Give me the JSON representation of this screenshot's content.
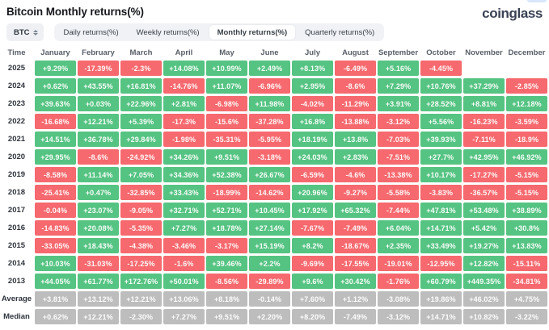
{
  "page": {
    "title": "Bitcoin Monthly returns(%)",
    "brand": "coinglass"
  },
  "controls": {
    "symbol_select": {
      "value": "BTC"
    },
    "tabs": [
      {
        "label": "Daily returns(%)",
        "active": false
      },
      {
        "label": "Weekly returns(%)",
        "active": false
      },
      {
        "label": "Monthly returns(%)",
        "active": true
      },
      {
        "label": "Quarterly returns(%)",
        "active": false
      }
    ]
  },
  "colors": {
    "positive": "#55C382",
    "negative": "#F6696E",
    "neutral": "#BDBDBD"
  },
  "table": {
    "time_header": "Time",
    "months": [
      "January",
      "February",
      "March",
      "April",
      "May",
      "June",
      "July",
      "August",
      "September",
      "October",
      "November",
      "December"
    ],
    "rows": [
      {
        "label": "2025",
        "type": "year",
        "values": [
          "+9.29%",
          "-17.39%",
          "-2.3%",
          "+14.08%",
          "+10.99%",
          "+2.49%",
          "+8.13%",
          "-6.49%",
          "+5.16%",
          "-4.45%",
          "",
          ""
        ]
      },
      {
        "label": "2024",
        "type": "year",
        "values": [
          "+0.62%",
          "+43.55%",
          "+16.81%",
          "-14.76%",
          "+11.07%",
          "-6.96%",
          "+2.95%",
          "-8.6%",
          "+7.29%",
          "+10.76%",
          "+37.29%",
          "-2.85%"
        ]
      },
      {
        "label": "2023",
        "type": "year",
        "values": [
          "+39.63%",
          "+0.03%",
          "+22.96%",
          "+2.81%",
          "-6.98%",
          "+11.98%",
          "-4.02%",
          "-11.29%",
          "+3.91%",
          "+28.52%",
          "+8.81%",
          "+12.18%"
        ]
      },
      {
        "label": "2022",
        "type": "year",
        "values": [
          "-16.68%",
          "+12.21%",
          "+5.39%",
          "-17.3%",
          "-15.6%",
          "-37.28%",
          "+16.8%",
          "-13.88%",
          "-3.12%",
          "+5.56%",
          "-16.23%",
          "-3.59%"
        ]
      },
      {
        "label": "2021",
        "type": "year",
        "values": [
          "+14.51%",
          "+36.78%",
          "+29.84%",
          "-1.98%",
          "-35.31%",
          "-5.95%",
          "+18.19%",
          "+13.8%",
          "-7.03%",
          "+39.93%",
          "-7.11%",
          "-18.9%"
        ]
      },
      {
        "label": "2020",
        "type": "year",
        "values": [
          "+29.95%",
          "-8.6%",
          "-24.92%",
          "+34.26%",
          "+9.51%",
          "-3.18%",
          "+24.03%",
          "+2.83%",
          "-7.51%",
          "+27.7%",
          "+42.95%",
          "+46.92%"
        ]
      },
      {
        "label": "2019",
        "type": "year",
        "values": [
          "-8.58%",
          "+11.14%",
          "+7.05%",
          "+34.36%",
          "+52.38%",
          "+26.67%",
          "-6.59%",
          "-4.6%",
          "-13.38%",
          "+10.17%",
          "-17.27%",
          "-5.15%"
        ]
      },
      {
        "label": "2018",
        "type": "year",
        "values": [
          "-25.41%",
          "+0.47%",
          "-32.85%",
          "+33.43%",
          "-18.99%",
          "-14.62%",
          "+20.96%",
          "-9.27%",
          "-5.58%",
          "-3.83%",
          "-36.57%",
          "-5.15%"
        ]
      },
      {
        "label": "2017",
        "type": "year",
        "values": [
          "-0.04%",
          "+23.07%",
          "-9.05%",
          "+32.71%",
          "+52.71%",
          "+10.45%",
          "+17.92%",
          "+65.32%",
          "-7.44%",
          "+47.81%",
          "+53.48%",
          "+38.89%"
        ]
      },
      {
        "label": "2016",
        "type": "year",
        "values": [
          "-14.83%",
          "+20.08%",
          "-5.35%",
          "+7.27%",
          "+18.78%",
          "+27.14%",
          "-7.67%",
          "-7.49%",
          "+6.04%",
          "+14.71%",
          "+5.42%",
          "+30.8%"
        ]
      },
      {
        "label": "2015",
        "type": "year",
        "values": [
          "-33.05%",
          "+18.43%",
          "-4.38%",
          "-3.46%",
          "-3.17%",
          "+15.19%",
          "+8.2%",
          "-18.67%",
          "+2.35%",
          "+33.49%",
          "+19.27%",
          "+13.83%"
        ]
      },
      {
        "label": "2014",
        "type": "year",
        "values": [
          "+10.03%",
          "-31.03%",
          "-17.25%",
          "-1.6%",
          "+39.46%",
          "+2.2%",
          "-9.69%",
          "-17.55%",
          "-19.01%",
          "-12.95%",
          "+12.82%",
          "-15.11%"
        ]
      },
      {
        "label": "2013",
        "type": "year",
        "values": [
          "+44.05%",
          "+61.77%",
          "+172.76%",
          "+50.01%",
          "-8.56%",
          "-29.89%",
          "+9.6%",
          "+30.42%",
          "-1.76%",
          "+60.79%",
          "+449.35%",
          "-34.81%"
        ]
      },
      {
        "label": "Average",
        "type": "summary",
        "values": [
          "+3.81%",
          "+13.12%",
          "+12.21%",
          "+13.06%",
          "+8.18%",
          "-0.14%",
          "+7.60%",
          "+1.12%",
          "-3.08%",
          "+19.86%",
          "+46.02%",
          "+4.75%"
        ]
      },
      {
        "label": "Median",
        "type": "summary",
        "values": [
          "+0.62%",
          "+12.21%",
          "-2.30%",
          "+7.27%",
          "+9.51%",
          "+2.20%",
          "+8.20%",
          "-7.49%",
          "-3.12%",
          "+14.71%",
          "+10.82%",
          "-3.22%"
        ]
      }
    ]
  }
}
